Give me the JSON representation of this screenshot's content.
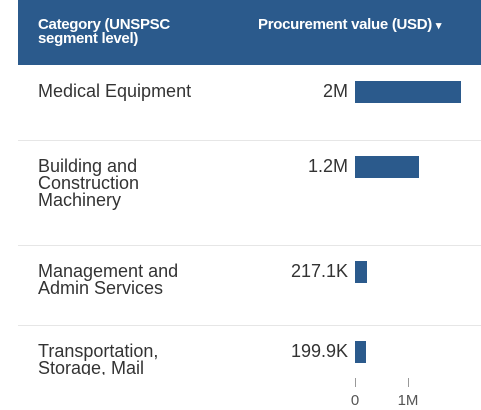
{
  "chart_data": {
    "type": "bar",
    "orientation": "horizontal",
    "column_headers": [
      "Category (UNSPSC segment level)",
      "Procurement value (USD)"
    ],
    "sort_indicator": "▾",
    "categories": [
      "Medical Equipment",
      "Building and Construction Machinery",
      "Management and Admin Services",
      "Transportation, Storage, Mail"
    ],
    "values": [
      2000000,
      1200000,
      217100,
      199900
    ],
    "value_labels": [
      "2M",
      "1.2M",
      "217.1K",
      "199.9K"
    ],
    "color": "#2b5a8c",
    "xlim": [
      0,
      2000000
    ],
    "xticks": [
      0,
      {
        "value": 1000000,
        "label": "1M"
      }
    ]
  }
}
